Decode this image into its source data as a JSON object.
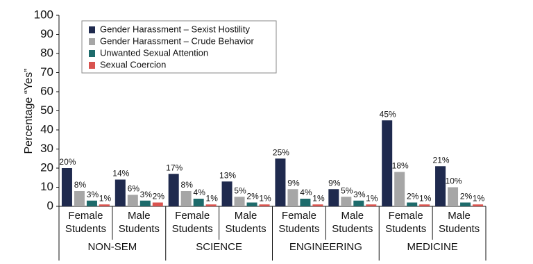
{
  "chart_data": {
    "type": "bar",
    "y_label": "Percentage “Yes”",
    "categories": [
      "Female Students",
      "Male Students",
      "Female Students",
      "Male Students",
      "Female Students",
      "Male Students",
      "Female Students",
      "Male Students"
    ],
    "groups": [
      "NON-SEM",
      "SCIENCE",
      "ENGINEERING",
      "MEDICINE"
    ],
    "series": [
      {
        "name": "Gender Harassment – Sexist Hostility",
        "color": "#1f2a4e",
        "values": [
          20,
          14,
          17,
          13,
          25,
          9,
          45,
          21
        ],
        "value_labels": [
          "20%",
          "14%",
          "17%",
          "13%",
          "25%",
          "9%",
          "45%",
          "21%"
        ]
      },
      {
        "name": "Gender Harassment – Crude Behavior",
        "color": "#a6a6a6",
        "values": [
          8,
          6,
          8,
          5,
          9,
          5,
          18,
          10
        ],
        "value_labels": [
          "8%",
          "6%",
          "8%",
          "5%",
          "9%",
          "5%",
          "18%",
          "10%"
        ]
      },
      {
        "name": "Unwanted Sexual Attention",
        "color": "#1d6b6b",
        "values": [
          3,
          3,
          4,
          2,
          4,
          3,
          2,
          2
        ],
        "value_labels": [
          "3%",
          "3%",
          "4%",
          "2%",
          "4%",
          "3%",
          "2%",
          "2%"
        ]
      },
      {
        "name": "Sexual Coercion",
        "color": "#d9534f",
        "values": [
          1,
          2,
          1,
          1,
          1,
          1,
          1,
          1
        ],
        "value_labels": [
          "1%",
          "2%",
          "1%",
          "1%",
          "1%",
          "1%",
          "1%",
          "1%"
        ]
      }
    ],
    "ylim": [
      0,
      100
    ],
    "yticks": [
      0,
      10,
      20,
      30,
      40,
      50,
      60,
      70,
      80,
      90,
      100
    ],
    "grid": false,
    "legend": "upper left"
  }
}
